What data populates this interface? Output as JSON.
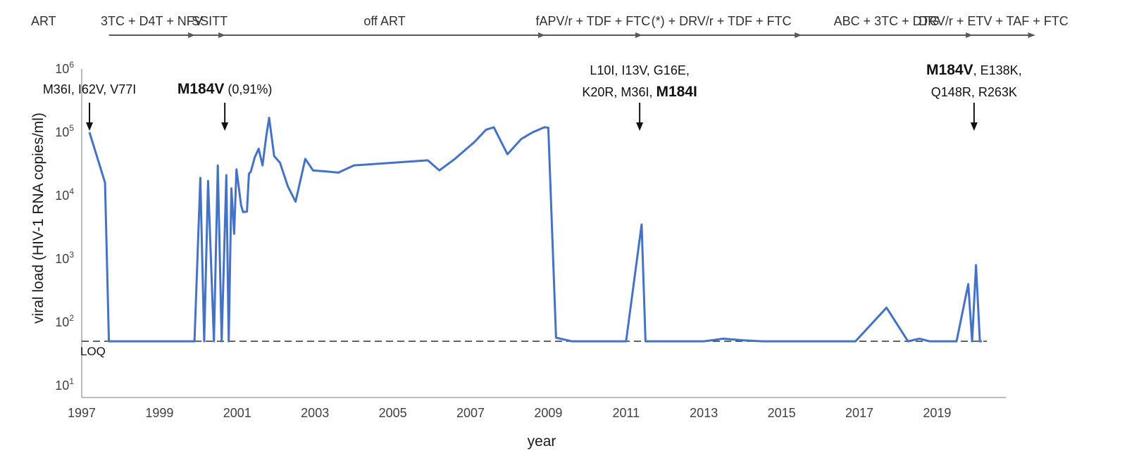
{
  "chart_data": {
    "type": "line",
    "xlabel": "year",
    "ylabel": "viral load (HIV-1 RNA copies/ml)",
    "y_scale": "log",
    "ylim": [
      10,
      1000000
    ],
    "xlim": [
      1997,
      2020.1
    ],
    "x_ticks": [
      "1997",
      "1999",
      "2001",
      "2003",
      "2005",
      "2007",
      "2009",
      "2011",
      "2013",
      "2015",
      "2017",
      "2019"
    ],
    "y_ticks": [
      {
        "base": "10",
        "exp": "1",
        "value": 10
      },
      {
        "base": "10",
        "exp": "2",
        "value": 100
      },
      {
        "base": "10",
        "exp": "3",
        "value": 1000
      },
      {
        "base": "10",
        "exp": "4",
        "value": 10000
      },
      {
        "base": "10",
        "exp": "5",
        "value": 100000
      },
      {
        "base": "10",
        "exp": "6",
        "value": 1000000
      }
    ],
    "line_color": "#4472C4",
    "loq": {
      "label": "LOQ",
      "value": 50
    },
    "series": [
      {
        "x": [
          1997.2,
          1997.6,
          1997.7,
          1998.0,
          1998.5,
          1999.0,
          1999.5,
          1999.9,
          2000.05,
          2000.15,
          2000.25,
          2000.4,
          2000.5,
          2000.6,
          2000.72,
          2000.78,
          2000.85,
          2000.92,
          2000.98,
          2001.1,
          2001.15,
          2001.25,
          2001.3,
          2001.35,
          2001.45,
          2001.55,
          2001.65,
          2001.75,
          2001.82,
          2001.95,
          2002.1,
          2002.3,
          2002.5,
          2002.75,
          2002.95,
          2003.3,
          2003.6,
          2004.0,
          2005.9,
          2006.2,
          2006.6,
          2007.1,
          2007.4,
          2007.6,
          2007.95,
          2008.3,
          2008.6,
          2008.9,
          2009.0,
          2009.2,
          2009.6,
          2010.0,
          2010.5,
          2011.0,
          2011.4,
          2011.5,
          2012.0,
          2012.5,
          2013.0,
          2013.5,
          2014.0,
          2014.5,
          2015.0,
          2015.5,
          2016.0,
          2016.5,
          2016.9,
          2017.7,
          2018.25,
          2018.55,
          2018.8,
          2019.1,
          2019.5,
          2019.8,
          2019.9,
          2020.0,
          2020.1,
          2020.15
        ],
        "y": [
          100000,
          16000,
          50,
          50,
          50,
          50,
          50,
          50,
          19000,
          50,
          17000,
          50,
          30000,
          50,
          21000,
          50,
          13000,
          2500,
          26000,
          7000,
          5500,
          5600,
          22000,
          24000,
          40000,
          55000,
          30000,
          90000,
          170000,
          42000,
          33000,
          14000,
          8000,
          38000,
          25000,
          24000,
          23000,
          30000,
          36000,
          25000,
          38000,
          70000,
          110000,
          120000,
          45000,
          78000,
          100000,
          120000,
          118000,
          57,
          50,
          50,
          50,
          50,
          3500,
          50,
          50,
          50,
          50,
          55,
          52,
          50,
          50,
          50,
          50,
          50,
          50,
          170,
          50,
          55,
          50,
          50,
          50,
          400,
          50,
          800,
          50,
          50
        ]
      }
    ]
  },
  "art": {
    "label": "ART",
    "regimens": [
      {
        "label": "3TC + D4T + NFV",
        "start": 1997.7,
        "end": 1999.9
      },
      {
        "label": "SSITT",
        "start": 1999.9,
        "end": 2000.68
      },
      {
        "label": "off ART",
        "start": 2000.68,
        "end": 2008.9
      },
      {
        "label": "fAPV/r + TDF + FTC",
        "start": 2008.9,
        "end": 2011.4
      },
      {
        "label": "(*) + DRV/r + TDF + FTC",
        "start": 2011.4,
        "end": 2015.5
      },
      {
        "label": "ABC + 3TC + DTG",
        "start": 2015.5,
        "end": 2019.9
      },
      {
        "label": "DRV/r + ETV + TAF + FTC",
        "start": 2019.9,
        "end": 2021.5
      }
    ]
  },
  "annotations": [
    {
      "x": 1997.2,
      "lines": [
        [
          {
            "text": "M36I, I62V, V77I",
            "bold": false
          }
        ]
      ]
    },
    {
      "x": 2000.68,
      "lines": [
        [
          {
            "text": "M184V",
            "bold": true
          },
          {
            "text": " (0,91%)",
            "bold": false
          }
        ]
      ]
    },
    {
      "x": 2011.35,
      "lines": [
        [
          {
            "text": "L10I, I13V, G16E,",
            "bold": false
          }
        ],
        [
          {
            "text": "K20R, M36I, ",
            "bold": false
          },
          {
            "text": "M184I",
            "bold": true
          }
        ]
      ]
    },
    {
      "x": 2019.95,
      "lines": [
        [
          {
            "text": "M184V",
            "bold": true
          },
          {
            "text": ", E138K,",
            "bold": false
          }
        ],
        [
          {
            "text": "Q148R, R263K",
            "bold": false
          }
        ]
      ]
    }
  ]
}
